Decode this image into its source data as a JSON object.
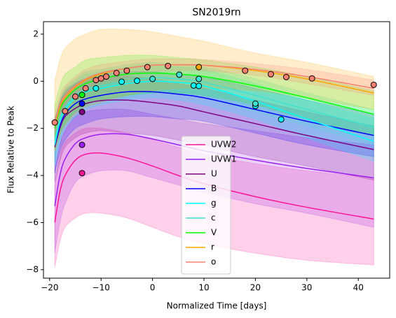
{
  "chart_data": {
    "type": "line",
    "title": "SN2019rn",
    "x_label": "Normalized Time [days]",
    "y_label": "Flux Relative to Peak",
    "xlim": [
      -21.2,
      46.1
    ],
    "ylim": [
      -8.36,
      2.53
    ],
    "xticks": [
      {
        "value": -20,
        "label": "−20"
      },
      {
        "value": -10,
        "label": "−10"
      },
      0,
      10,
      20,
      30,
      40
    ],
    "yticks": [
      2,
      0,
      {
        "value": -2,
        "label": "−2"
      },
      {
        "value": -4,
        "label": "−4"
      },
      {
        "value": -6,
        "label": "−6"
      },
      {
        "value": -8,
        "label": "−8"
      }
    ],
    "legend": "lower center",
    "band_opacity": 0.2,
    "x": [
      -19,
      -18,
      -17,
      -15,
      -13,
      -10,
      -5,
      0,
      5,
      10,
      20,
      30,
      43
    ],
    "series": [
      {
        "name": "UVW2",
        "color": "#ff1493",
        "values": [
          -6.0,
          -4.7,
          -4.0,
          -3.35,
          -3.1,
          -3.05,
          -3.25,
          -3.6,
          -4.0,
          -4.35,
          -4.9,
          -5.35,
          -5.85
        ],
        "upper": [
          -4.5,
          -3.2,
          -2.6,
          -2.2,
          -2.0,
          -2.0,
          -2.2,
          -2.5,
          -2.8,
          -3.1,
          -3.5,
          -3.8,
          -4.1
        ],
        "lower": [
          -7.9,
          -6.8,
          -6.2,
          -5.8,
          -5.6,
          -5.6,
          -5.8,
          -6.2,
          -6.6,
          -6.9,
          -7.3,
          -7.6,
          -7.8
        ],
        "points_x": [
          -13.7
        ],
        "points_y": [
          -3.9
        ]
      },
      {
        "name": "UVW1",
        "color": "#9b1ff0",
        "values": [
          -5.3,
          -4.0,
          -3.3,
          -2.65,
          -2.4,
          -2.25,
          -2.25,
          -2.45,
          -2.7,
          -2.95,
          -3.35,
          -3.7,
          -4.1
        ],
        "upper": [
          -3.8,
          -2.7,
          -2.1,
          -1.5,
          -1.3,
          -1.2,
          -1.2,
          -1.4,
          -1.6,
          -1.8,
          -2.1,
          -2.4,
          -2.7
        ],
        "lower": [
          -7.3,
          -6.0,
          -5.2,
          -4.3,
          -4.0,
          -3.8,
          -3.8,
          -4.1,
          -4.4,
          -4.7,
          -5.2,
          -5.6,
          -6.2
        ],
        "points_x": [
          -13.7
        ],
        "points_y": [
          -2.7
        ]
      },
      {
        "name": "U",
        "color": "#800080",
        "values": [
          -2.8,
          -2.0,
          -1.5,
          -1.15,
          -0.95,
          -0.82,
          -0.8,
          -0.9,
          -1.05,
          -1.3,
          -1.8,
          -2.3,
          -2.9
        ],
        "upper": [
          -1.6,
          -0.9,
          -0.4,
          -0.1,
          0.1,
          0.2,
          0.2,
          0.1,
          -0.1,
          -0.3,
          -0.8,
          -1.3,
          -1.9
        ],
        "lower": [
          -4.3,
          -3.4,
          -2.8,
          -2.4,
          -2.2,
          -2.1,
          -2.2,
          -2.3,
          -2.5,
          -2.7,
          -3.2,
          -3.6,
          -4.2
        ],
        "points_x": [
          -13.7
        ],
        "points_y": [
          -1.3
        ]
      },
      {
        "name": "B",
        "color": "#0000ff",
        "values": [
          -2.7,
          -1.9,
          -1.4,
          -0.95,
          -0.75,
          -0.6,
          -0.45,
          -0.45,
          -0.55,
          -0.7,
          -1.2,
          -1.7,
          -2.3
        ],
        "upper": [
          -1.7,
          -0.9,
          -0.5,
          -0.1,
          0.1,
          0.3,
          0.4,
          0.4,
          0.3,
          0.2,
          -0.3,
          -0.8,
          -1.4
        ],
        "lower": [
          -3.9,
          -3.0,
          -2.5,
          -2.0,
          -1.8,
          -1.6,
          -1.5,
          -1.5,
          -1.6,
          -1.7,
          -2.2,
          -2.7,
          -3.2
        ],
        "points_x": [
          -13.7
        ],
        "points_y": [
          -0.95
        ]
      },
      {
        "name": "g",
        "color": "#00ffff",
        "values": [
          -2.7,
          -1.7,
          -1.2,
          -0.7,
          -0.45,
          -0.3,
          -0.1,
          0.0,
          -0.05,
          -0.2,
          -0.85,
          -1.6,
          -2.55
        ],
        "upper": [
          -1.9,
          -0.9,
          -0.4,
          0.0,
          0.3,
          0.4,
          0.6,
          0.7,
          0.6,
          0.5,
          -0.1,
          -0.8,
          -1.6
        ],
        "lower": [
          -3.6,
          -2.6,
          -2.0,
          -1.5,
          -1.2,
          -1.0,
          -0.8,
          -0.7,
          -0.8,
          -1.0,
          -1.6,
          -2.4,
          -3.4
        ],
        "points_x": [
          -11,
          -6,
          -3,
          8,
          9,
          20,
          25
        ],
        "points_y": [
          -0.3,
          -0.02,
          0.02,
          -0.18,
          -0.2,
          -1.05,
          -1.62
        ]
      },
      {
        "name": "c",
        "color": "#40e0d0",
        "values": [
          -2.5,
          -1.6,
          -1.1,
          -0.6,
          -0.35,
          -0.2,
          0.0,
          0.15,
          0.1,
          -0.05,
          -0.6,
          -1.2,
          -1.95
        ],
        "upper": [
          -1.8,
          -0.8,
          -0.3,
          0.1,
          0.4,
          0.5,
          0.7,
          0.8,
          0.7,
          0.6,
          0.1,
          -0.5,
          -1.2
        ],
        "lower": [
          -3.3,
          -2.4,
          -1.9,
          -1.3,
          -1.1,
          -0.9,
          -0.7,
          -0.5,
          -0.5,
          -0.7,
          -1.3,
          -1.9,
          -2.7
        ],
        "points_x": [
          0,
          5.2,
          9,
          20
        ],
        "points_y": [
          0.1,
          0.28,
          0.1,
          -0.95
        ]
      },
      {
        "name": "V",
        "color": "#00ff00",
        "values": [
          -2.0,
          -1.2,
          -0.8,
          -0.35,
          -0.1,
          0.1,
          0.3,
          0.35,
          0.3,
          0.2,
          -0.2,
          -0.7,
          -1.4
        ],
        "upper": [
          -1.0,
          -0.2,
          0.3,
          0.6,
          0.9,
          1.0,
          1.1,
          1.1,
          1.0,
          0.9,
          0.6,
          0.2,
          -0.4
        ],
        "lower": [
          -2.9,
          -2.2,
          -1.8,
          -1.3,
          -1.0,
          -0.8,
          -0.6,
          -0.5,
          -0.5,
          -0.6,
          -1.0,
          -1.6,
          -2.3
        ],
        "points_x": [
          -13.7
        ],
        "points_y": [
          -0.58
        ]
      },
      {
        "name": "r",
        "color": "#ffa500",
        "values": [
          -1.9,
          -1.1,
          -0.7,
          -0.25,
          0.05,
          0.3,
          0.55,
          0.68,
          0.7,
          0.68,
          0.45,
          0.1,
          -0.5
        ],
        "upper": [
          0.0,
          0.9,
          1.4,
          1.8,
          2.0,
          2.2,
          2.2,
          2.1,
          1.9,
          1.7,
          1.2,
          0.8,
          0.2
        ],
        "lower": [
          -3.0,
          -2.3,
          -1.9,
          -1.4,
          -1.1,
          -0.9,
          -0.6,
          -0.4,
          -0.3,
          -0.3,
          -0.4,
          -0.7,
          -1.2
        ],
        "points_x": [
          9
        ],
        "points_y": [
          0.6
        ]
      },
      {
        "name": "o",
        "color": "#fa8072",
        "values": [
          -1.8,
          -1.0,
          -0.6,
          -0.2,
          0.1,
          0.35,
          0.55,
          0.68,
          0.7,
          0.68,
          0.5,
          0.2,
          -0.3
        ],
        "upper": [
          -1.4,
          -0.6,
          -0.2,
          0.2,
          0.5,
          0.7,
          0.85,
          0.95,
          0.95,
          0.92,
          0.75,
          0.5,
          0.05
        ],
        "lower": [
          -2.2,
          -1.4,
          -1.0,
          -0.6,
          -0.3,
          -0.05,
          0.2,
          0.4,
          0.45,
          0.44,
          0.25,
          -0.1,
          -0.6
        ],
        "points_x": [
          -19,
          -17,
          -15,
          -13,
          -11,
          -10,
          -9,
          -7,
          -5,
          -1,
          3,
          18,
          23,
          26,
          31,
          43
        ],
        "points_y": [
          -1.75,
          -1.27,
          -0.65,
          -0.3,
          0.05,
          0.12,
          0.2,
          0.35,
          0.45,
          0.6,
          0.65,
          0.45,
          0.3,
          0.18,
          0.12,
          -0.15
        ]
      }
    ]
  }
}
